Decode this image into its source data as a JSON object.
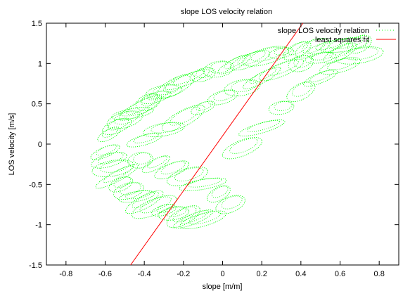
{
  "chart_data": {
    "type": "scatter",
    "title": "slope LOS velocity relation",
    "xlabel": "slope [m/m]",
    "ylabel": "LOS velocity [m/s]",
    "xlim": [
      -0.9,
      0.9
    ],
    "ylim": [
      -1.5,
      1.5
    ],
    "xticks": [
      -0.8,
      -0.6,
      -0.4,
      -0.2,
      0,
      0.2,
      0.4,
      0.6,
      0.8
    ],
    "yticks": [
      -1.5,
      -1,
      -0.5,
      0,
      0.5,
      1,
      1.5
    ],
    "xtick_labels": [
      "-0.8",
      "-0.6",
      "-0.4",
      "-0.2",
      "0",
      "0.2",
      "0.4",
      "0.6",
      "0.8"
    ],
    "ytick_labels": [
      "-1.5",
      "-1",
      "-0.5",
      "0",
      "0.5",
      "1",
      "1.5"
    ],
    "grid": false,
    "legend_position": "top-right",
    "series": [
      {
        "name": "slope LOS velocity relation",
        "kind": "scatter-loops",
        "color": "#00ff00",
        "loop_centers": [
          [
            -0.58,
            0.12
          ],
          [
            -0.54,
            0.22
          ],
          [
            -0.5,
            0.3
          ],
          [
            -0.46,
            0.38
          ],
          [
            -0.42,
            0.45
          ],
          [
            -0.38,
            0.52
          ],
          [
            -0.34,
            0.58
          ],
          [
            -0.3,
            0.65
          ],
          [
            -0.24,
            0.72
          ],
          [
            -0.18,
            0.8
          ],
          [
            -0.1,
            0.86
          ],
          [
            -0.02,
            0.93
          ],
          [
            0.06,
            0.99
          ],
          [
            0.14,
            1.04
          ],
          [
            0.22,
            1.09
          ],
          [
            0.3,
            1.13
          ],
          [
            0.38,
            1.16
          ],
          [
            0.46,
            1.19
          ],
          [
            0.54,
            1.21
          ],
          [
            0.62,
            1.23
          ],
          [
            0.7,
            1.24
          ],
          [
            -0.6,
            -0.1
          ],
          [
            -0.58,
            -0.2
          ],
          [
            -0.56,
            -0.3
          ],
          [
            -0.54,
            -0.4
          ],
          [
            -0.52,
            -0.5
          ],
          [
            -0.48,
            -0.58
          ],
          [
            -0.44,
            -0.65
          ],
          [
            -0.4,
            -0.72
          ],
          [
            -0.35,
            -0.78
          ],
          [
            -0.3,
            -0.82
          ],
          [
            -0.25,
            -0.86
          ],
          [
            -0.2,
            -0.9
          ],
          [
            -0.15,
            -0.93
          ],
          [
            -0.1,
            -0.94
          ],
          [
            -0.42,
            -0.2
          ],
          [
            -0.34,
            -0.25
          ],
          [
            -0.26,
            -0.32
          ],
          [
            -0.18,
            -0.4
          ],
          [
            -0.1,
            -0.5
          ],
          [
            -0.02,
            -0.62
          ],
          [
            0.04,
            -0.75
          ],
          [
            -0.4,
            0.05
          ],
          [
            -0.3,
            0.18
          ],
          [
            -0.2,
            0.32
          ],
          [
            -0.1,
            0.45
          ],
          [
            0.0,
            0.58
          ],
          [
            0.1,
            0.7
          ],
          [
            0.2,
            0.82
          ],
          [
            0.3,
            0.92
          ],
          [
            0.4,
            1.0
          ],
          [
            0.5,
            1.07
          ],
          [
            0.6,
            1.13
          ],
          [
            0.1,
            -0.05
          ],
          [
            0.2,
            0.2
          ],
          [
            0.3,
            0.45
          ],
          [
            0.4,
            0.65
          ],
          [
            0.5,
            0.82
          ],
          [
            0.6,
            0.97
          ],
          [
            0.7,
            1.1
          ]
        ]
      },
      {
        "name": "least squares fit",
        "kind": "line",
        "color": "#ff0000",
        "x": [
          -0.47,
          0.41
        ],
        "y": [
          -1.5,
          1.5
        ]
      }
    ]
  }
}
